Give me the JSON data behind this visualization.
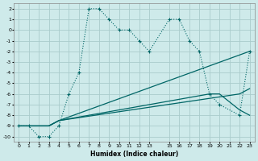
{
  "xlabel": "Humidex (Indice chaleur)",
  "background_color": "#ceeaea",
  "grid_color": "#aacccc",
  "line_color": "#006666",
  "xlim": [
    -0.5,
    23.5
  ],
  "ylim": [
    -10.5,
    2.5
  ],
  "xtick_vals": [
    0,
    1,
    2,
    3,
    4,
    5,
    6,
    7,
    8,
    9,
    10,
    11,
    12,
    13,
    15,
    16,
    17,
    18,
    19,
    20,
    21,
    22,
    23
  ],
  "ytick_vals": [
    2,
    1,
    0,
    -1,
    -2,
    -3,
    -4,
    -5,
    -6,
    -7,
    -8,
    -9,
    -10
  ],
  "dotted_x": [
    0,
    1,
    2,
    3,
    4,
    5,
    6,
    7,
    8,
    9,
    10,
    11,
    12,
    13,
    15,
    16,
    17,
    18,
    19,
    20,
    22,
    23
  ],
  "dotted_y": [
    -9,
    -9,
    -10,
    -10,
    -9,
    -6,
    -4,
    2,
    2,
    1,
    0,
    0,
    -1,
    -2,
    1,
    1,
    -1,
    -2,
    -6,
    -7,
    -8,
    -2
  ],
  "line1_x": [
    0,
    3,
    4,
    23
  ],
  "line1_y": [
    -9,
    -9,
    -8.5,
    -2
  ],
  "line2_x": [
    0,
    3,
    4,
    19,
    20,
    22,
    23
  ],
  "line2_y": [
    -9,
    -9,
    -8.5,
    -6,
    -6,
    -7.5,
    -8
  ],
  "line3_x": [
    0,
    3,
    4,
    22,
    23
  ],
  "line3_y": [
    -9,
    -9,
    -8.5,
    -6,
    -5.5
  ]
}
